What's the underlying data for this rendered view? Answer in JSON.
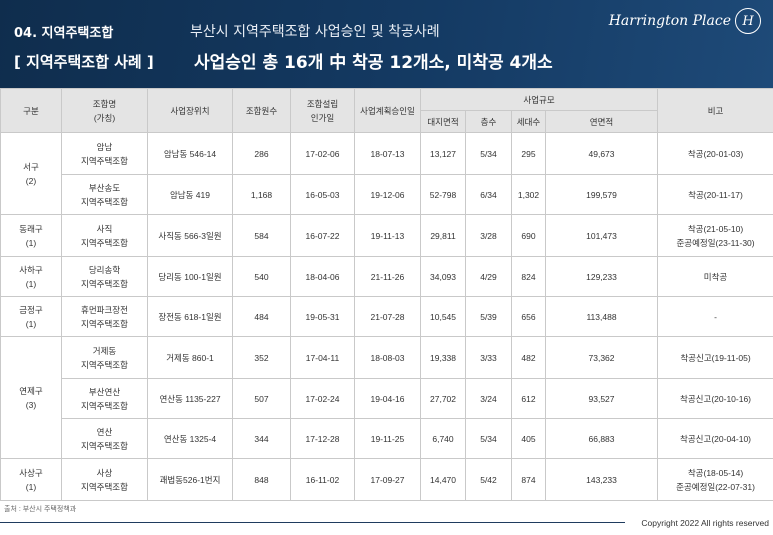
{
  "header": {
    "section_label": "04. 지역주택조합",
    "subtitle": "부산시 지역주택조합 사업승인 및 착공사례",
    "section_title": "[ 지역주택조합 사례 ]",
    "headline": "사업승인 총 16개 中 착공 12개소, 미착공  4개소",
    "brand_text": "Harrington Place",
    "brand_emblem": "H"
  },
  "table": {
    "columns": {
      "district": "구분",
      "union_name_1": "조합명",
      "union_name_2": "(가칭)",
      "location": "사업장위치",
      "members": "조합원수",
      "established_1": "조합설립",
      "established_2": "인가일",
      "plan_approval": "사업계획승인일",
      "scale": "사업규모",
      "land_area": "대지면적",
      "floors": "층수",
      "households": "세대수",
      "floor_area": "연면적",
      "remarks": "비고"
    },
    "groups": [
      {
        "district": "서구",
        "count": "(2)",
        "rows": [
          {
            "name_1": "암남",
            "name_2": "지역주택조합",
            "location": "암남동 546-14",
            "members": "286",
            "established": "17-02-06",
            "plan": "18-07-13",
            "land": "13,127",
            "floors": "5/34",
            "households": "295",
            "area": "49,673",
            "remark_1": "착공(20-01-03)",
            "remark_2": ""
          },
          {
            "name_1": "부산송도",
            "name_2": "지역주택조합",
            "location": "암남동 419",
            "members": "1,168",
            "established": "16-05-03",
            "plan": "19-12-06",
            "land": "52-798",
            "floors": "6/34",
            "households": "1,302",
            "area": "199,579",
            "remark_1": "착공(20-11-17)",
            "remark_2": ""
          }
        ]
      },
      {
        "district": "동래구",
        "count": "(1)",
        "rows": [
          {
            "name_1": "사직",
            "name_2": "지역주택조합",
            "location": "사직동 566-3일원",
            "members": "584",
            "established": "16-07-22",
            "plan": "19-11-13",
            "land": "29,811",
            "floors": "3/28",
            "households": "690",
            "area": "101,473",
            "remark_1": "착공(21-05-10)",
            "remark_2": "준공예정일(23-11-30)"
          }
        ]
      },
      {
        "district": "사하구",
        "count": "(1)",
        "rows": [
          {
            "name_1": "당리송학",
            "name_2": "지역주택조합",
            "location": "당리동 100-1일원",
            "members": "540",
            "established": "18-04-06",
            "plan": "21-11-26",
            "land": "34,093",
            "floors": "4/29",
            "households": "824",
            "area": "129,233",
            "remark_1": "미착공",
            "remark_2": ""
          }
        ]
      },
      {
        "district": "금정구",
        "count": "(1)",
        "rows": [
          {
            "name_1": "휴먼파크장전",
            "name_2": "지역주택조합",
            "location": "장전동 618-1일원",
            "members": "484",
            "established": "19-05-31",
            "plan": "21-07-28",
            "land": "10,545",
            "floors": "5/39",
            "households": "656",
            "area": "113,488",
            "remark_1": "-",
            "remark_2": ""
          }
        ]
      },
      {
        "district": "연제구",
        "count": "(3)",
        "rows": [
          {
            "name_1": "거제동",
            "name_2": "지역주택조합",
            "location": "거제동 860-1",
            "members": "352",
            "established": "17-04-11",
            "plan": "18-08-03",
            "land": "19,338",
            "floors": "3/33",
            "households": "482",
            "area": "73,362",
            "remark_1": "착공신고(19-11-05)",
            "remark_2": ""
          },
          {
            "name_1": "부산연산",
            "name_2": "지역주택조합",
            "location": "연산동 1135-227",
            "members": "507",
            "established": "17-02-24",
            "plan": "19-04-16",
            "land": "27,702",
            "floors": "3/24",
            "households": "612",
            "area": "93,527",
            "remark_1": "착공신고(20-10-16)",
            "remark_2": ""
          },
          {
            "name_1": "연산",
            "name_2": "지역주택조합",
            "location": "연산동 1325-4",
            "members": "344",
            "established": "17-12-28",
            "plan": "19-11-25",
            "land": "6,740",
            "floors": "5/34",
            "households": "405",
            "area": "66,883",
            "remark_1": "착공신고(20-04-10)",
            "remark_2": ""
          }
        ]
      },
      {
        "district": "사상구",
        "count": "(1)",
        "rows": [
          {
            "name_1": "사상",
            "name_2": "지역주택조합",
            "location": "괘법동526-1번지",
            "members": "848",
            "established": "16-11-02",
            "plan": "17-09-27",
            "land": "14,470",
            "floors": "5/42",
            "households": "874",
            "area": "143,233",
            "remark_1": "착공(18-05-14)",
            "remark_2": "준공예정일(22-07-31)"
          }
        ]
      }
    ]
  },
  "footer": {
    "source": "출처 : 부산시 주택정책과",
    "copyright": "Copyright 2022  All rights reserved"
  },
  "colors": {
    "header_bg": "#143a63",
    "table_header_bg": "#e4e4e4",
    "grid": "#c9c9c9"
  }
}
